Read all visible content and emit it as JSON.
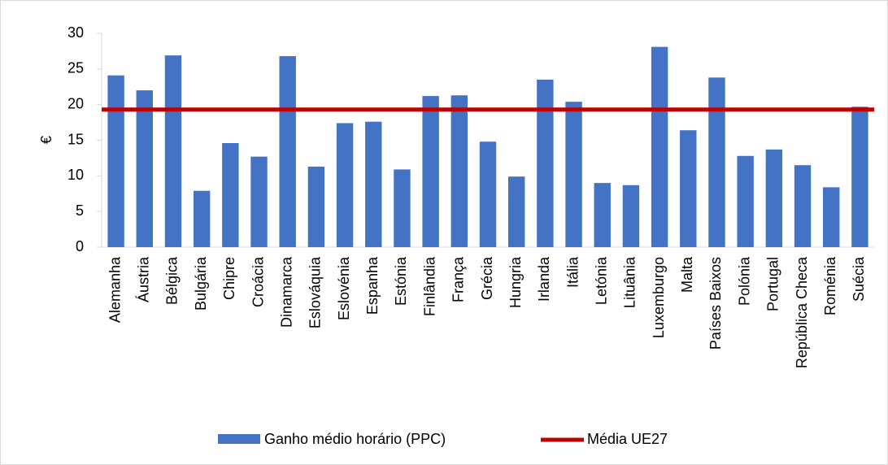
{
  "chart_data": {
    "type": "bar",
    "ylabel": "€",
    "categories": [
      "Alemanha",
      "Áustria",
      "Bélgica",
      "Bulgária",
      "Chipre",
      "Croácia",
      "Dinamarca",
      "Eslováquia",
      "Eslovénia",
      "Espanha",
      "Estónia",
      "Finlândia",
      "França",
      "Grécia",
      "Hungria",
      "Irlanda",
      "Itália",
      "Letónia",
      "Lituânia",
      "Luxemburgo",
      "Malta",
      "Países Baixos",
      "Polónia",
      "Portugal",
      "República Checa",
      "Roménia",
      "Suécia"
    ],
    "series": [
      {
        "name": "Ganho médio horário (PPC)",
        "color": "#4472c4",
        "values": [
          24.1,
          22.0,
          26.9,
          7.9,
          14.6,
          12.7,
          26.8,
          11.3,
          17.4,
          17.6,
          10.9,
          21.2,
          21.3,
          14.8,
          9.9,
          23.5,
          20.4,
          9.0,
          8.7,
          28.1,
          16.4,
          23.8,
          12.8,
          13.7,
          11.5,
          8.4,
          19.7
        ]
      },
      {
        "name": "Média UE27",
        "color": "#c00000",
        "value": 19.3
      }
    ],
    "ylim": [
      0,
      30
    ],
    "yticks": [
      0,
      5,
      10,
      15,
      20,
      25,
      30
    ]
  }
}
